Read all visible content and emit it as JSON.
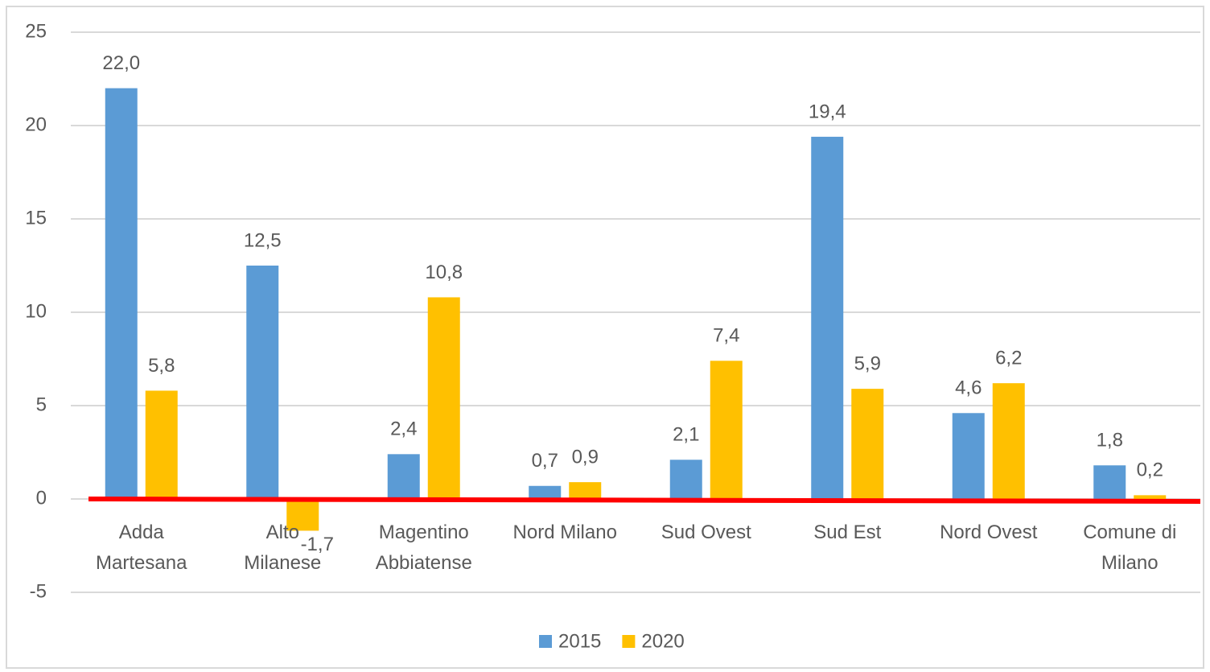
{
  "chart_data": {
    "type": "bar",
    "categories": [
      "Adda Martesana",
      "Alto Milanese",
      "Magentino Abbiatense",
      "Nord Milano",
      "Sud Ovest",
      "Sud Est",
      "Nord Ovest",
      "Comune di Milano"
    ],
    "series": [
      {
        "name": "2015",
        "color": "#5b9bd5",
        "values": [
          22.0,
          12.5,
          2.4,
          0.7,
          2.1,
          19.4,
          4.6,
          1.8
        ],
        "value_labels": [
          "22,0",
          "12,5",
          "2,4",
          "0,7",
          "2,1",
          "19,4",
          "4,6",
          "1,8"
        ]
      },
      {
        "name": "2020",
        "color": "#ffc000",
        "values": [
          5.8,
          -1.7,
          10.8,
          0.9,
          7.4,
          5.9,
          6.2,
          0.2
        ],
        "value_labels": [
          "5,8",
          "-1,7",
          "10,8",
          "0,9",
          "7,4",
          "5,9",
          "6,2",
          "0,2"
        ]
      }
    ],
    "ylim": [
      -5,
      25
    ],
    "yticks": [
      -5,
      0,
      5,
      10,
      15,
      20,
      25
    ],
    "grid": true,
    "legend": "bottom"
  }
}
